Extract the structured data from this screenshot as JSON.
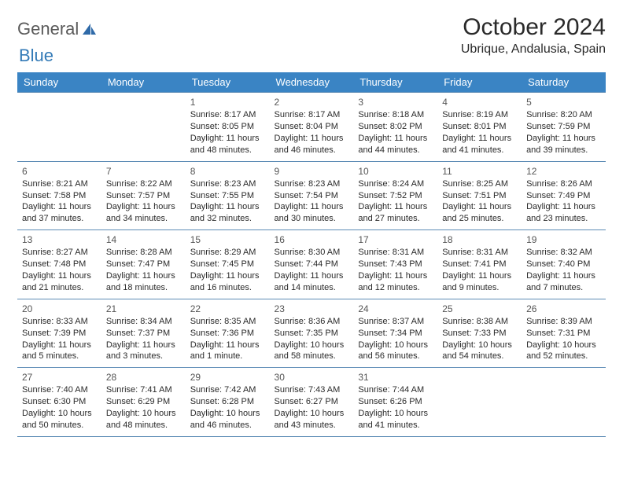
{
  "brand": {
    "part1": "General",
    "part2": "Blue"
  },
  "title": "October 2024",
  "location": "Ubrique, Andalusia, Spain",
  "day_headers": [
    "Sunday",
    "Monday",
    "Tuesday",
    "Wednesday",
    "Thursday",
    "Friday",
    "Saturday"
  ],
  "colors": {
    "header_bg": "#3a84c4",
    "header_text": "#ffffff",
    "border": "#5c8bb5",
    "body_text": "#2a2a2a",
    "brand_blue": "#337ab7"
  },
  "weeks": [
    [
      null,
      null,
      {
        "n": "1",
        "sr": "Sunrise: 8:17 AM",
        "ss": "Sunset: 8:05 PM",
        "d1": "Daylight: 11 hours",
        "d2": "and 48 minutes."
      },
      {
        "n": "2",
        "sr": "Sunrise: 8:17 AM",
        "ss": "Sunset: 8:04 PM",
        "d1": "Daylight: 11 hours",
        "d2": "and 46 minutes."
      },
      {
        "n": "3",
        "sr": "Sunrise: 8:18 AM",
        "ss": "Sunset: 8:02 PM",
        "d1": "Daylight: 11 hours",
        "d2": "and 44 minutes."
      },
      {
        "n": "4",
        "sr": "Sunrise: 8:19 AM",
        "ss": "Sunset: 8:01 PM",
        "d1": "Daylight: 11 hours",
        "d2": "and 41 minutes."
      },
      {
        "n": "5",
        "sr": "Sunrise: 8:20 AM",
        "ss": "Sunset: 7:59 PM",
        "d1": "Daylight: 11 hours",
        "d2": "and 39 minutes."
      }
    ],
    [
      {
        "n": "6",
        "sr": "Sunrise: 8:21 AM",
        "ss": "Sunset: 7:58 PM",
        "d1": "Daylight: 11 hours",
        "d2": "and 37 minutes."
      },
      {
        "n": "7",
        "sr": "Sunrise: 8:22 AM",
        "ss": "Sunset: 7:57 PM",
        "d1": "Daylight: 11 hours",
        "d2": "and 34 minutes."
      },
      {
        "n": "8",
        "sr": "Sunrise: 8:23 AM",
        "ss": "Sunset: 7:55 PM",
        "d1": "Daylight: 11 hours",
        "d2": "and 32 minutes."
      },
      {
        "n": "9",
        "sr": "Sunrise: 8:23 AM",
        "ss": "Sunset: 7:54 PM",
        "d1": "Daylight: 11 hours",
        "d2": "and 30 minutes."
      },
      {
        "n": "10",
        "sr": "Sunrise: 8:24 AM",
        "ss": "Sunset: 7:52 PM",
        "d1": "Daylight: 11 hours",
        "d2": "and 27 minutes."
      },
      {
        "n": "11",
        "sr": "Sunrise: 8:25 AM",
        "ss": "Sunset: 7:51 PM",
        "d1": "Daylight: 11 hours",
        "d2": "and 25 minutes."
      },
      {
        "n": "12",
        "sr": "Sunrise: 8:26 AM",
        "ss": "Sunset: 7:49 PM",
        "d1": "Daylight: 11 hours",
        "d2": "and 23 minutes."
      }
    ],
    [
      {
        "n": "13",
        "sr": "Sunrise: 8:27 AM",
        "ss": "Sunset: 7:48 PM",
        "d1": "Daylight: 11 hours",
        "d2": "and 21 minutes."
      },
      {
        "n": "14",
        "sr": "Sunrise: 8:28 AM",
        "ss": "Sunset: 7:47 PM",
        "d1": "Daylight: 11 hours",
        "d2": "and 18 minutes."
      },
      {
        "n": "15",
        "sr": "Sunrise: 8:29 AM",
        "ss": "Sunset: 7:45 PM",
        "d1": "Daylight: 11 hours",
        "d2": "and 16 minutes."
      },
      {
        "n": "16",
        "sr": "Sunrise: 8:30 AM",
        "ss": "Sunset: 7:44 PM",
        "d1": "Daylight: 11 hours",
        "d2": "and 14 minutes."
      },
      {
        "n": "17",
        "sr": "Sunrise: 8:31 AM",
        "ss": "Sunset: 7:43 PM",
        "d1": "Daylight: 11 hours",
        "d2": "and 12 minutes."
      },
      {
        "n": "18",
        "sr": "Sunrise: 8:31 AM",
        "ss": "Sunset: 7:41 PM",
        "d1": "Daylight: 11 hours",
        "d2": "and 9 minutes."
      },
      {
        "n": "19",
        "sr": "Sunrise: 8:32 AM",
        "ss": "Sunset: 7:40 PM",
        "d1": "Daylight: 11 hours",
        "d2": "and 7 minutes."
      }
    ],
    [
      {
        "n": "20",
        "sr": "Sunrise: 8:33 AM",
        "ss": "Sunset: 7:39 PM",
        "d1": "Daylight: 11 hours",
        "d2": "and 5 minutes."
      },
      {
        "n": "21",
        "sr": "Sunrise: 8:34 AM",
        "ss": "Sunset: 7:37 PM",
        "d1": "Daylight: 11 hours",
        "d2": "and 3 minutes."
      },
      {
        "n": "22",
        "sr": "Sunrise: 8:35 AM",
        "ss": "Sunset: 7:36 PM",
        "d1": "Daylight: 11 hours",
        "d2": "and 1 minute."
      },
      {
        "n": "23",
        "sr": "Sunrise: 8:36 AM",
        "ss": "Sunset: 7:35 PM",
        "d1": "Daylight: 10 hours",
        "d2": "and 58 minutes."
      },
      {
        "n": "24",
        "sr": "Sunrise: 8:37 AM",
        "ss": "Sunset: 7:34 PM",
        "d1": "Daylight: 10 hours",
        "d2": "and 56 minutes."
      },
      {
        "n": "25",
        "sr": "Sunrise: 8:38 AM",
        "ss": "Sunset: 7:33 PM",
        "d1": "Daylight: 10 hours",
        "d2": "and 54 minutes."
      },
      {
        "n": "26",
        "sr": "Sunrise: 8:39 AM",
        "ss": "Sunset: 7:31 PM",
        "d1": "Daylight: 10 hours",
        "d2": "and 52 minutes."
      }
    ],
    [
      {
        "n": "27",
        "sr": "Sunrise: 7:40 AM",
        "ss": "Sunset: 6:30 PM",
        "d1": "Daylight: 10 hours",
        "d2": "and 50 minutes."
      },
      {
        "n": "28",
        "sr": "Sunrise: 7:41 AM",
        "ss": "Sunset: 6:29 PM",
        "d1": "Daylight: 10 hours",
        "d2": "and 48 minutes."
      },
      {
        "n": "29",
        "sr": "Sunrise: 7:42 AM",
        "ss": "Sunset: 6:28 PM",
        "d1": "Daylight: 10 hours",
        "d2": "and 46 minutes."
      },
      {
        "n": "30",
        "sr": "Sunrise: 7:43 AM",
        "ss": "Sunset: 6:27 PM",
        "d1": "Daylight: 10 hours",
        "d2": "and 43 minutes."
      },
      {
        "n": "31",
        "sr": "Sunrise: 7:44 AM",
        "ss": "Sunset: 6:26 PM",
        "d1": "Daylight: 10 hours",
        "d2": "and 41 minutes."
      },
      null,
      null
    ]
  ]
}
